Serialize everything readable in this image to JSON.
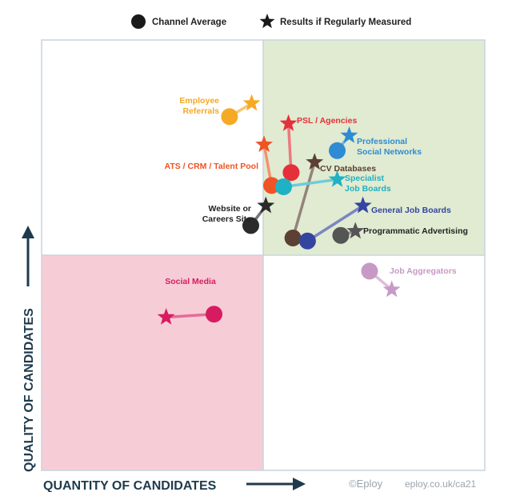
{
  "chart_data": {
    "type": "scatter",
    "title": "",
    "xlabel": "QUANTITY OF CANDIDATES",
    "ylabel": "QUALITY OF CANDIDATES",
    "xlim": [
      0,
      100
    ],
    "ylim": [
      0,
      100
    ],
    "grid": false,
    "legend_position": "top-center",
    "legend": [
      {
        "marker": "circle",
        "label": "Channel Average"
      },
      {
        "marker": "star",
        "label": "Results if Regularly Measured"
      }
    ],
    "quadrant_colors": {
      "top_left": "#ffffff",
      "top_right": "#e0ebd1",
      "bottom_left": "#f6cdd6",
      "bottom_right": "#ffffff"
    },
    "series": [
      {
        "name": "Employee Referrals",
        "color": "#f5a924",
        "label_lines": [
          "Employee",
          "Referrals"
        ],
        "average": [
          42.4,
          82.2
        ],
        "measured": [
          47.4,
          85.3
        ]
      },
      {
        "name": "PSL / Agencies",
        "color": "#e5303a",
        "label_lines": [
          "PSL / Agencies"
        ],
        "average": [
          56.3,
          69.2
        ],
        "measured": [
          55.7,
          80.6
        ]
      },
      {
        "name": "Professional Social Networks",
        "color": "#2f8bd3",
        "label_lines": [
          "Professional",
          "Social Networks"
        ],
        "average": [
          66.7,
          74.3
        ],
        "measured": [
          69.4,
          77.8
        ]
      },
      {
        "name": "ATS / CRM / Talent Pool",
        "color": "#ee5424",
        "label_lines": [
          "ATS / CRM / Talent Pool"
        ],
        "average": [
          51.9,
          66.2
        ],
        "measured": [
          50.2,
          75.7
        ]
      },
      {
        "name": "CV Databases",
        "color": "#5c4033",
        "label_lines": [
          "CV Databases"
        ],
        "average": [
          56.7,
          54.0
        ],
        "measured": [
          61.6,
          71.6
        ]
      },
      {
        "name": "Specialist Job Boards",
        "color": "#1fb1c4",
        "label_lines": [
          "Specialist",
          "Job Boards"
        ],
        "average": [
          54.6,
          65.9
        ],
        "measured": [
          66.7,
          67.6
        ]
      },
      {
        "name": "Website or Careers Site",
        "color": "#2b2b2b",
        "label_lines": [
          "Website or",
          "Careers Site"
        ],
        "average": [
          47.2,
          56.9
        ],
        "measured": [
          50.6,
          61.5
        ]
      },
      {
        "name": "General Job Boards",
        "color": "#3445a0",
        "label_lines": [
          "General Job Boards"
        ],
        "average": [
          60.0,
          53.3
        ],
        "measured": [
          72.5,
          61.5
        ]
      },
      {
        "name": "Programmatic Advertising",
        "color": "#555555",
        "label_lines": [
          "Programmatic Advertising"
        ],
        "average": [
          67.5,
          54.6
        ],
        "measured": [
          70.8,
          55.6
        ]
      },
      {
        "name": "Job Aggregators",
        "color": "#c79ac6",
        "label_lines": [
          "Job Aggregators"
        ],
        "average": [
          74.0,
          46.3
        ],
        "measured": [
          79.0,
          42.0
        ]
      },
      {
        "name": "Social Media",
        "color": "#d81b60",
        "label_lines": [
          "Social Media"
        ],
        "average": [
          38.9,
          36.3
        ],
        "measured": [
          28.1,
          35.6
        ]
      }
    ]
  },
  "footer": {
    "copyright": "©Eploy",
    "url": "eploy.co.uk/ca21"
  }
}
